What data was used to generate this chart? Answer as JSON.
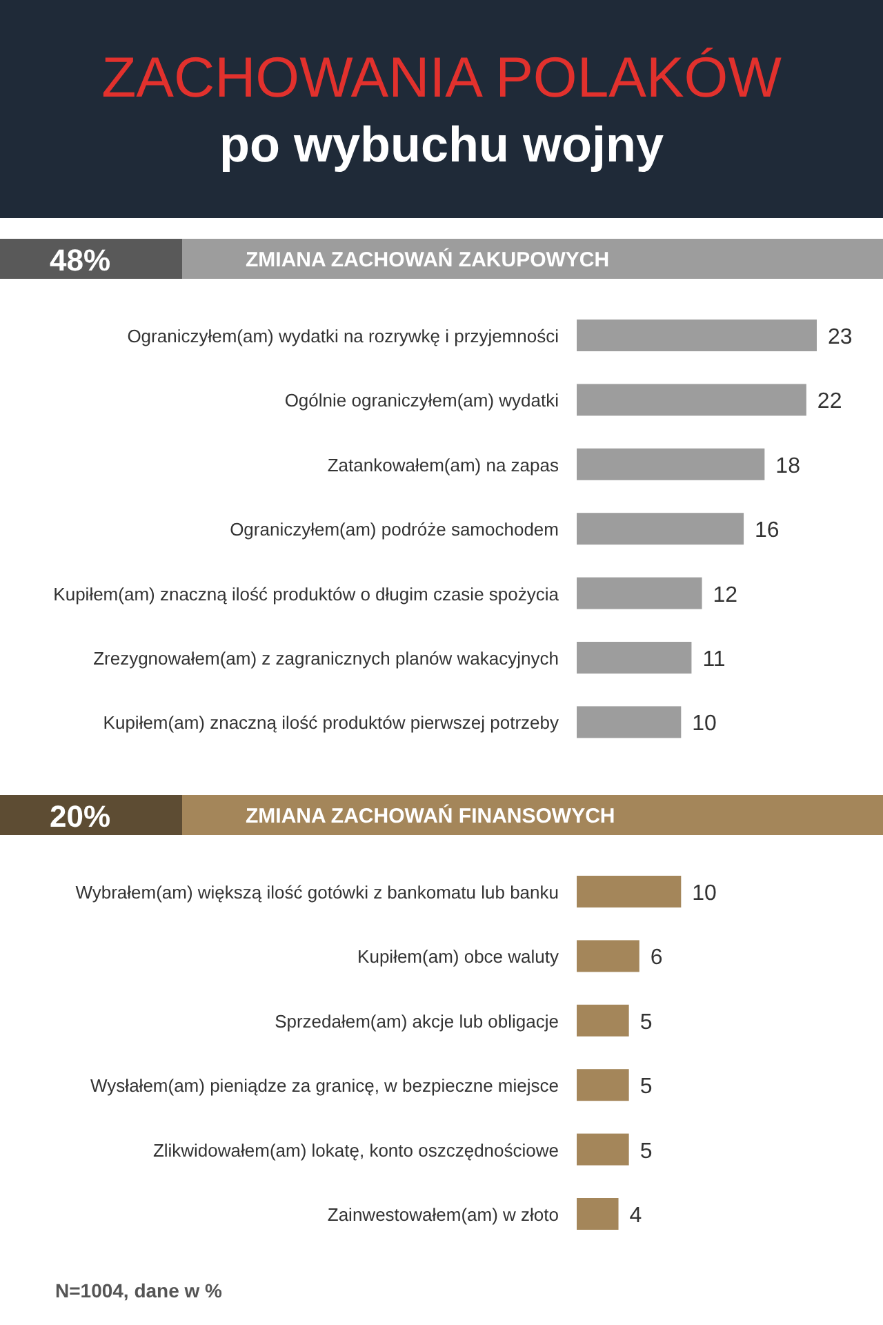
{
  "chart_data": [
    {
      "type": "other",
      "title": "ZACHOWANIA POLAKÓW",
      "subtitle": "po wybuchu wojny"
    },
    {
      "type": "bar",
      "orientation": "horizontal",
      "title": "ZMIANA ZACHOWAŃ ZAKUPOWYCH",
      "annotations": [
        "48%"
      ],
      "categories": [
        "Ograniczyłem(am) wydatki na rozrywkę i przyjemności",
        "Ogólnie ograniczyłem(am) wydatki",
        "Zatankowałem(am) na zapas",
        "Ograniczyłem(am) podróże samochodem",
        "Kupiłem(am) znaczną ilość produktów o długim czasie spożycia",
        "Zrezygnowałem(am) z zagranicznych planów wakacyjnych",
        "Kupiłem(am) znaczną ilość produktów pierwszej potrzeby"
      ],
      "values": [
        23,
        22,
        18,
        16,
        12,
        11,
        10
      ],
      "color": "#9d9d9d",
      "data_labels": true
    },
    {
      "type": "bar",
      "orientation": "horizontal",
      "title": "ZMIANA ZACHOWAŃ FINANSOWYCH",
      "annotations": [
        "20%",
        "N=1004, dane w %"
      ],
      "categories": [
        "Wybrałem(am) większą ilość gotówki z bankomatu lub banku",
        "Kupiłem(am) obce waluty",
        "Sprzedałem(am) akcje lub obligacje",
        "Wysłałem(am) pieniądze za granicę, w bezpieczne miejsce",
        "Zlikwidowałem(am) lokatę, konto oszczędnościowe",
        "Zainwestowałem(am) w złoto"
      ],
      "values": [
        10,
        6,
        5,
        5,
        5,
        4
      ],
      "color": "#a4865a",
      "data_labels": true
    }
  ]
}
